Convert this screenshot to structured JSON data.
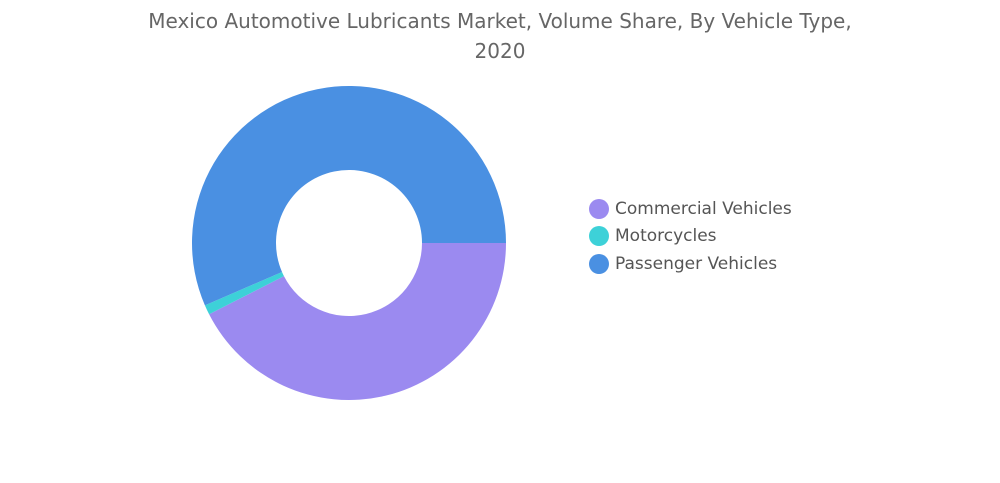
{
  "chart_data": {
    "type": "pie",
    "variant": "donut",
    "title_line1": "Mexico Automotive Lubricants Market, Volume Share, By Vehicle Type,",
    "title_line2": "2020",
    "categories": [
      "Commercial Vehicles",
      "Motorcycles",
      "Passenger Vehicles"
    ],
    "values": [
      42.5,
      1.0,
      56.5
    ],
    "unit": "%",
    "colors": [
      "#9b8af0",
      "#3dd1d8",
      "#4a90e2"
    ],
    "legend_position": "right",
    "data_labels_shown": false
  }
}
